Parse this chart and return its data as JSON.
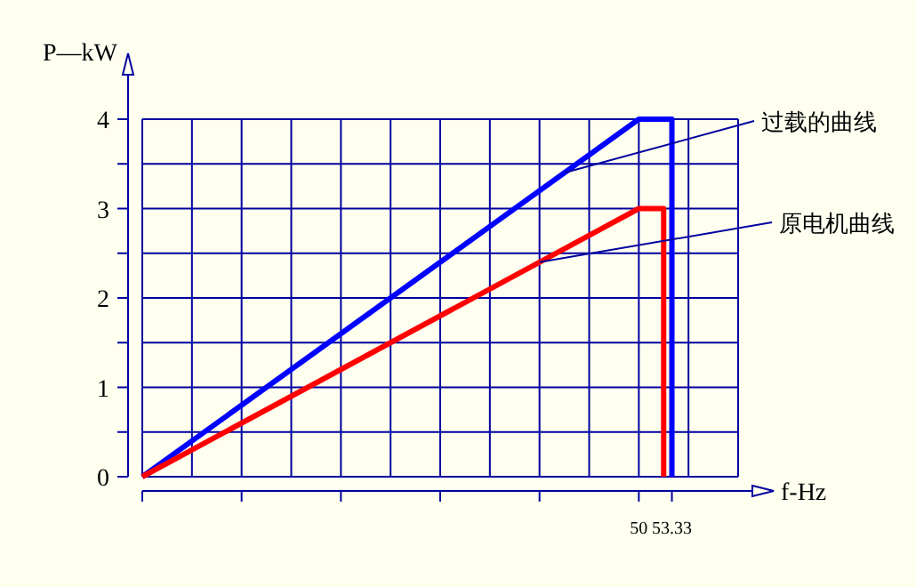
{
  "chart_data": {
    "type": "line",
    "xlabel": "f-Hz",
    "ylabel": "P—kW",
    "xlim": [
      0,
      60
    ],
    "ylim": [
      0,
      4
    ],
    "xticks": [
      {
        "value": 0,
        "label": null
      },
      {
        "value": 10,
        "label": null
      },
      {
        "value": 20,
        "label": null
      },
      {
        "value": 30,
        "label": null
      },
      {
        "value": 40,
        "label": null
      },
      50,
      53.33
    ],
    "yticks": [
      0,
      {
        "value": 0.5,
        "label": null
      },
      1,
      {
        "value": 1.5,
        "label": null
      },
      2,
      {
        "value": 2.5,
        "label": null
      },
      3,
      {
        "value": 3.5,
        "label": null
      },
      4
    ],
    "grid": true,
    "series": [
      {
        "color": "#0000ff",
        "x": [
          0,
          50,
          53.33,
          53.33
        ],
        "values": [
          0,
          4,
          4,
          0
        ]
      },
      {
        "color": "#ff0000",
        "x": [
          0,
          50,
          52.5,
          52.5
        ],
        "values": [
          0,
          3,
          3,
          0
        ]
      }
    ],
    "annotations": [
      {
        "text": "过载的曲线",
        "x": 42.5,
        "y": 3.4
      },
      {
        "text": "原电机曲线",
        "x": 40,
        "y": 2.4
      }
    ]
  }
}
